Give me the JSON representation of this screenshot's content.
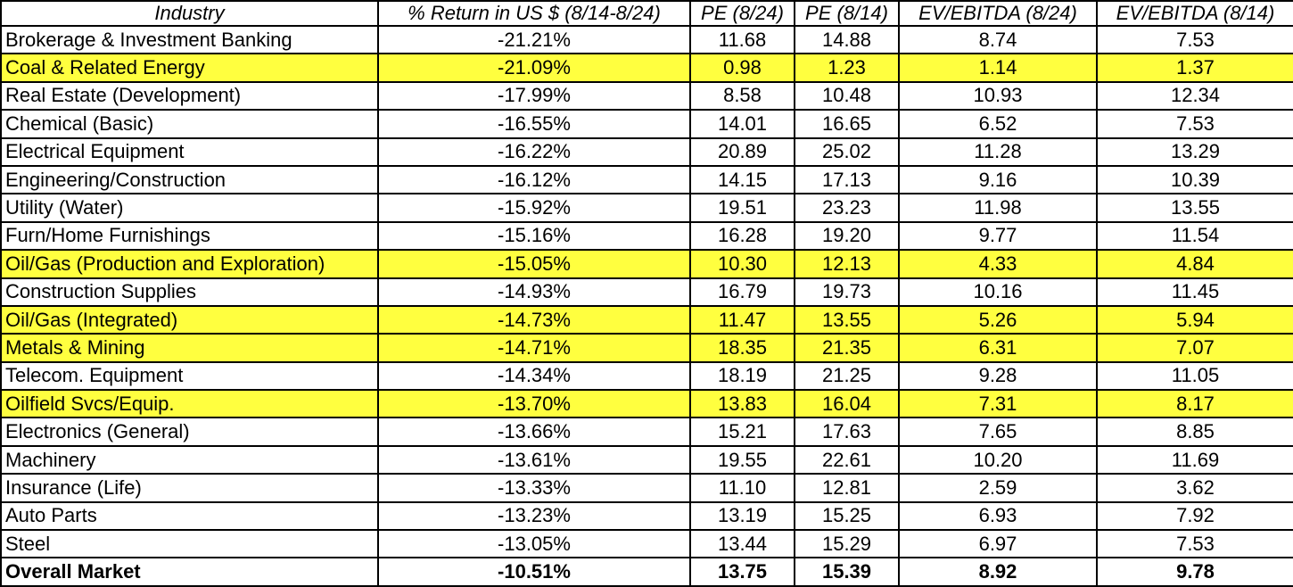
{
  "table": {
    "header": [
      "Industry",
      "% Return in US $ (8/14-8/24)",
      "PE (8/24)",
      "PE (8/14)",
      "EV/EBITDA (8/24)",
      "EV/EBITDA (8/14)"
    ],
    "highlight_color": "#ffff3f",
    "rows": [
      {
        "cells": [
          "Brokerage & Investment Banking",
          "-21.21%",
          "11.68",
          "14.88",
          "8.74",
          "7.53"
        ]
      },
      {
        "cells": [
          "Coal & Related Energy",
          "-21.09%",
          "0.98",
          "1.23",
          "1.14",
          "1.37"
        ],
        "highlight": true
      },
      {
        "cells": [
          "Real Estate (Development)",
          "-17.99%",
          "8.58",
          "10.48",
          "10.93",
          "12.34"
        ]
      },
      {
        "cells": [
          "Chemical (Basic)",
          "-16.55%",
          "14.01",
          "16.65",
          "6.52",
          "7.53"
        ]
      },
      {
        "cells": [
          "Electrical Equipment",
          "-16.22%",
          "20.89",
          "25.02",
          "11.28",
          "13.29"
        ]
      },
      {
        "cells": [
          "Engineering/Construction",
          "-16.12%",
          "14.15",
          "17.13",
          "9.16",
          "10.39"
        ]
      },
      {
        "cells": [
          "Utility (Water)",
          "-15.92%",
          "19.51",
          "23.23",
          "11.98",
          "13.55"
        ]
      },
      {
        "cells": [
          "Furn/Home Furnishings",
          "-15.16%",
          "16.28",
          "19.20",
          "9.77",
          "11.54"
        ]
      },
      {
        "cells": [
          "Oil/Gas (Production and Exploration)",
          "-15.05%",
          "10.30",
          "12.13",
          "4.33",
          "4.84"
        ],
        "highlight": true
      },
      {
        "cells": [
          "Construction Supplies",
          "-14.93%",
          "16.79",
          "19.73",
          "10.16",
          "11.45"
        ]
      },
      {
        "cells": [
          "Oil/Gas (Integrated)",
          "-14.73%",
          "11.47",
          "13.55",
          "5.26",
          "5.94"
        ],
        "highlight": true
      },
      {
        "cells": [
          "Metals & Mining",
          "-14.71%",
          "18.35",
          "21.35",
          "6.31",
          "7.07"
        ],
        "highlight": true
      },
      {
        "cells": [
          "Telecom. Equipment",
          "-14.34%",
          "18.19",
          "21.25",
          "9.28",
          "11.05"
        ]
      },
      {
        "cells": [
          "Oilfield Svcs/Equip.",
          "-13.70%",
          "13.83",
          "16.04",
          "7.31",
          "8.17"
        ],
        "highlight": true
      },
      {
        "cells": [
          "Electronics (General)",
          "-13.66%",
          "15.21",
          "17.63",
          "7.65",
          "8.85"
        ]
      },
      {
        "cells": [
          "Machinery",
          "-13.61%",
          "19.55",
          "22.61",
          "10.20",
          "11.69"
        ]
      },
      {
        "cells": [
          "Insurance (Life)",
          "-13.33%",
          "11.10",
          "12.81",
          "2.59",
          "3.62"
        ]
      },
      {
        "cells": [
          "Auto Parts",
          "-13.23%",
          "13.19",
          "15.25",
          "6.93",
          "7.92"
        ]
      },
      {
        "cells": [
          "Steel",
          "-13.05%",
          "13.44",
          "15.29",
          "6.97",
          "7.53"
        ]
      }
    ],
    "total": [
      "Overall Market",
      "-10.51%",
      "13.75",
      "15.39",
      "8.92",
      "9.78"
    ]
  }
}
